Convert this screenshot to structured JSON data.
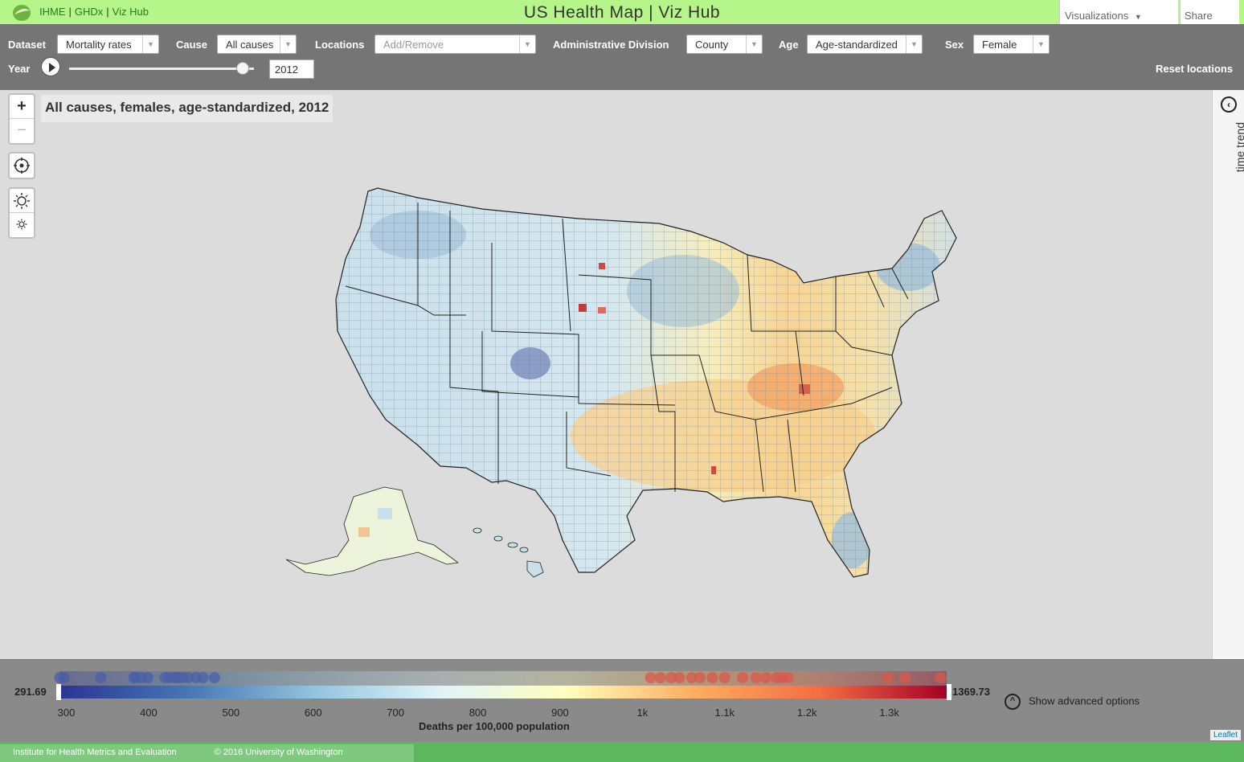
{
  "header": {
    "links": [
      "IHME",
      "GHDx",
      "Viz Hub"
    ],
    "title": "US Health Map | Viz Hub",
    "visualizations_label": "Visualizations",
    "share_label": "Share"
  },
  "controls": {
    "dataset_label": "Dataset",
    "dataset_value": "Mortality rates",
    "cause_label": "Cause",
    "cause_value": "All causes",
    "locations_label": "Locations",
    "locations_placeholder": "Add/Remove",
    "division_label": "Administrative Division",
    "division_value": "County",
    "age_label": "Age",
    "age_value": "Age-standardized",
    "sex_label": "Sex",
    "sex_value": "Female",
    "year_label": "Year",
    "year_value": "2012",
    "reset_label": "Reset locations"
  },
  "map": {
    "title": "All causes, females, age-standardized, 2012",
    "zoom_in": "+",
    "zoom_out": "−",
    "colors": {
      "land_base": "#c8dde8",
      "border": "#222222",
      "background": "#dcdcdc"
    }
  },
  "side_panel": {
    "label": "time trend"
  },
  "legend": {
    "min": "291.69",
    "max": "1369.73",
    "ticks": [
      "300",
      "400",
      "500",
      "600",
      "700",
      "800",
      "900",
      "1k",
      "1.1k",
      "1.2k",
      "1.3k"
    ],
    "axis_label": "Deaths per 100,000 population",
    "advanced_options": "Show advanced options",
    "attribution": "Leaflet",
    "color_stops": [
      "#2c3593",
      "#4575b4",
      "#91c3df",
      "#e0f3f8",
      "#ffffbf",
      "#fdae61",
      "#f46d43",
      "#a50026"
    ],
    "tick_values": [
      300,
      400,
      500,
      600,
      700,
      800,
      900,
      1000,
      1100,
      1200,
      1300
    ],
    "highlighted_values": [
      292,
      297,
      342,
      382,
      384,
      391,
      399,
      420,
      425,
      432,
      436,
      441,
      448,
      458,
      466,
      480,
      1010,
      1022,
      1035,
      1045,
      1060,
      1070,
      1085,
      1100,
      1122,
      1138,
      1150,
      1163,
      1170,
      1177,
      1298,
      1319,
      1362
    ]
  },
  "footer": {
    "org": "Institute for Health Metrics and Evaluation",
    "copyright": "© 2016 University of Washington"
  }
}
